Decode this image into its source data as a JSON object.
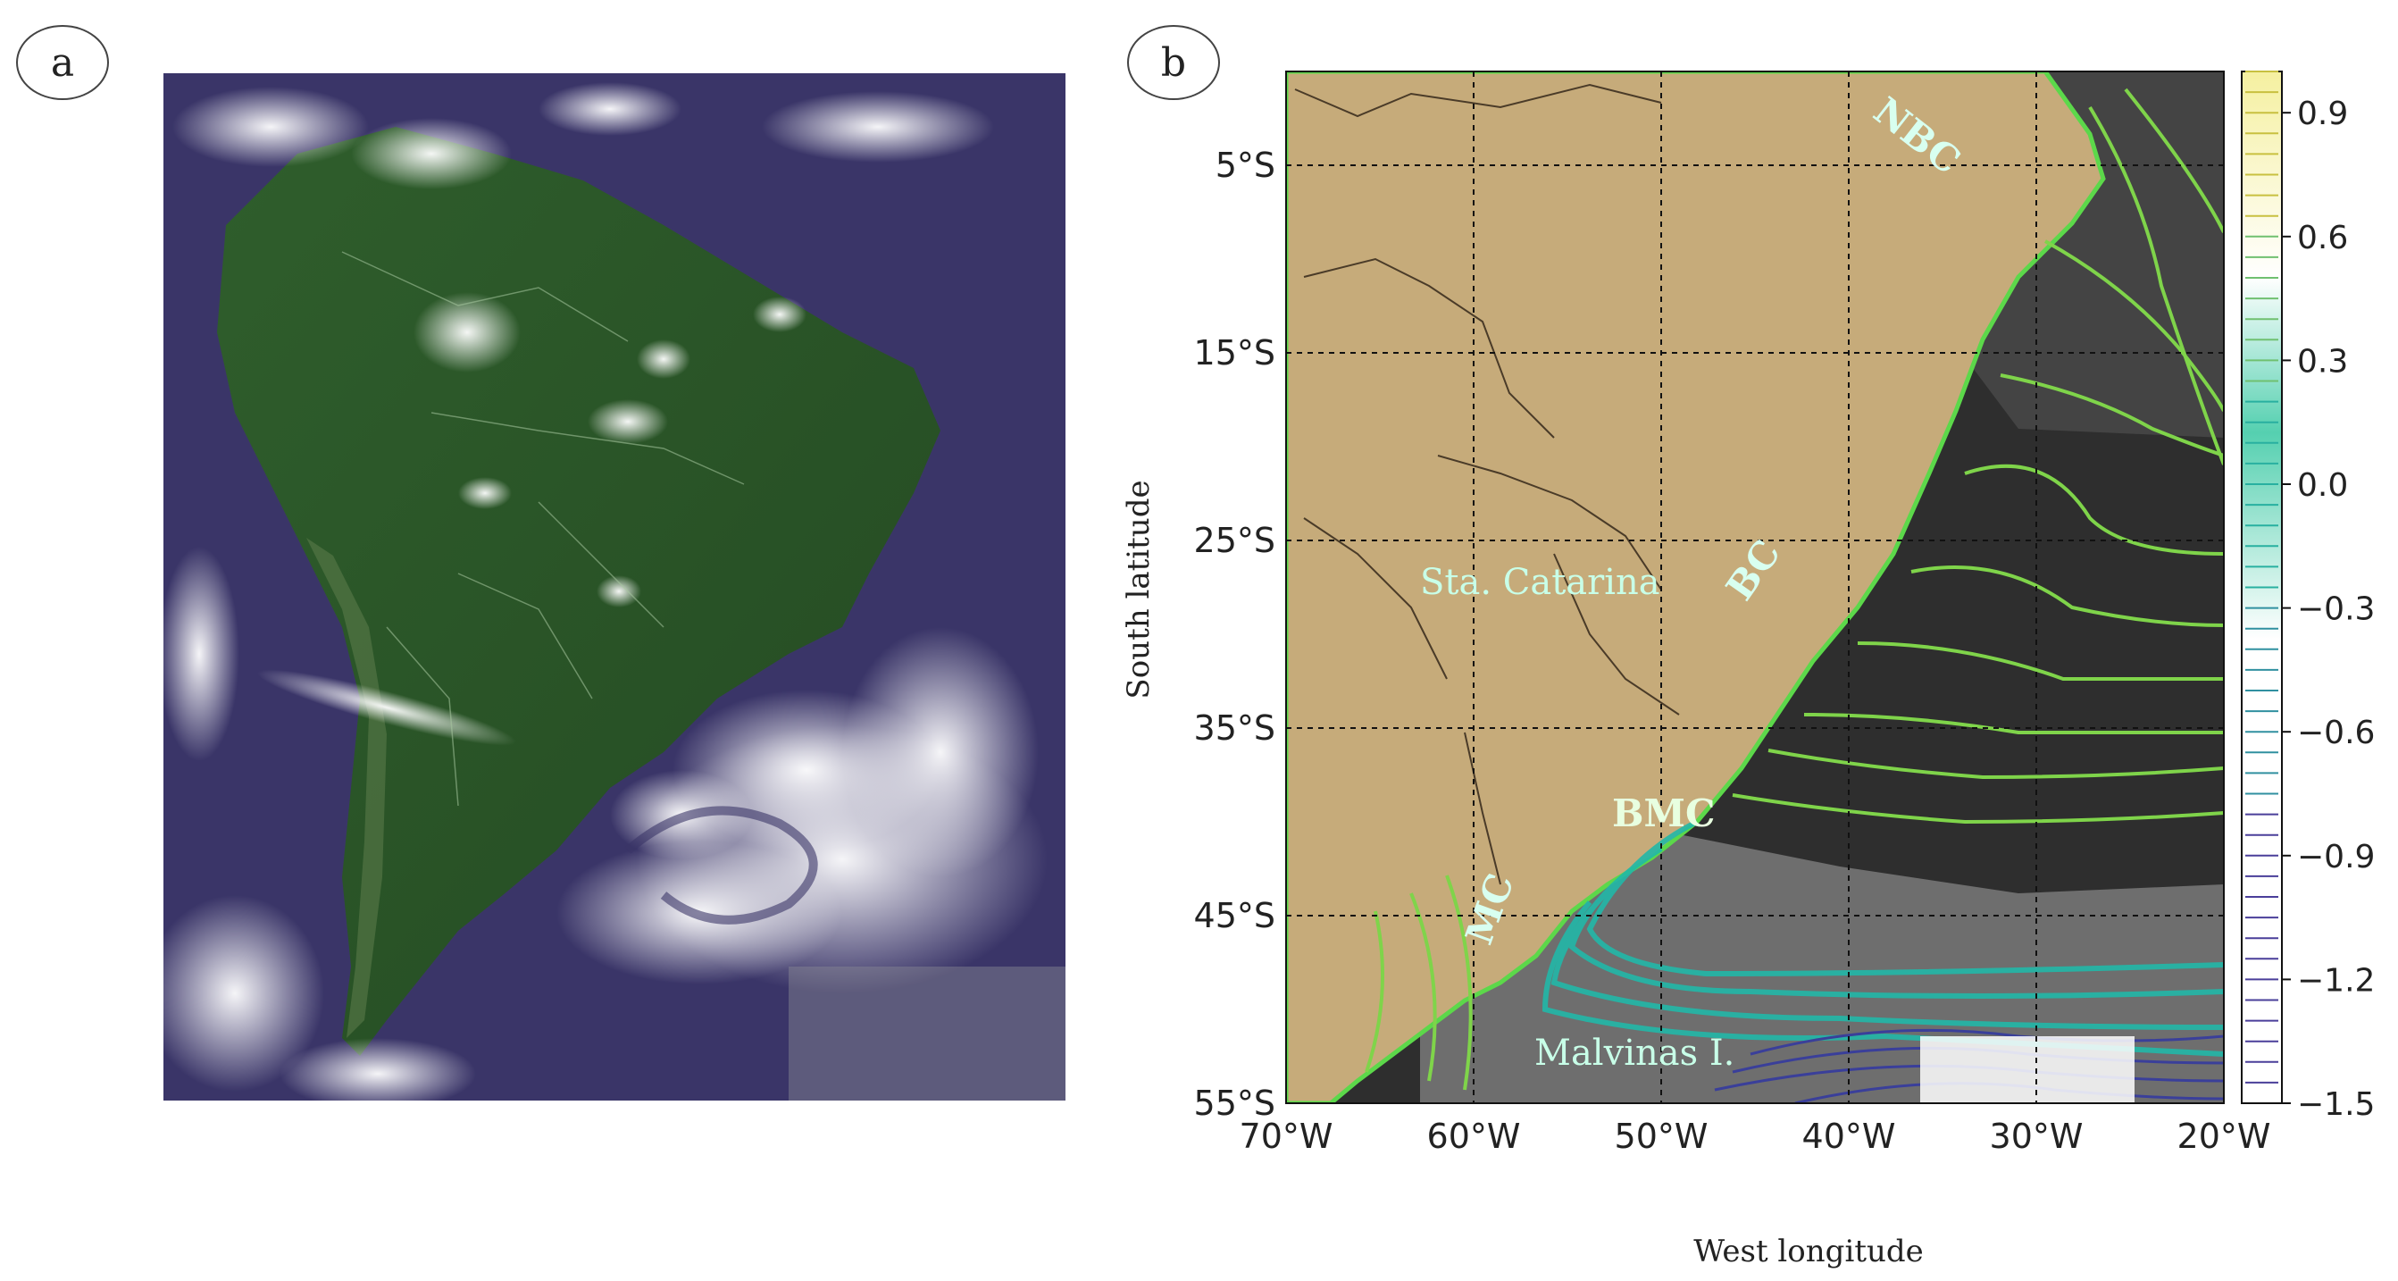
{
  "panel_a": {
    "label": "a"
  },
  "panel_b": {
    "label": "b",
    "x_axis_title": "West longitude",
    "y_axis_title": "South latitude",
    "lon_ticks": [
      "70°W",
      "60°W",
      "50°W",
      "40°W",
      "30°W",
      "20°W"
    ],
    "lat_ticks": [
      "5°S",
      "15°S",
      "25°S",
      "35°S",
      "45°S",
      "55°S"
    ],
    "colorbar_ticks": [
      "0.9",
      "0.6",
      "0.3",
      "0.0",
      "−0.3",
      "−0.6",
      "−0.9",
      "−1.2",
      "−1.5"
    ],
    "current_labels": {
      "nbc": "NBC",
      "bc": "BC",
      "bmc": "BMC",
      "mc": "MC"
    },
    "place_labels": {
      "sta_catarina": "Sta. Catarina",
      "malvinas": "Malvinas I."
    },
    "colors": {
      "land": "#c6ab7a",
      "ocean_dark": "#2b2b2b",
      "contour_green": "#7fd44a",
      "contour_teal": "#22b8a8",
      "contour_blue": "#3a3f9a",
      "label_text": "#d8fff0"
    }
  }
}
